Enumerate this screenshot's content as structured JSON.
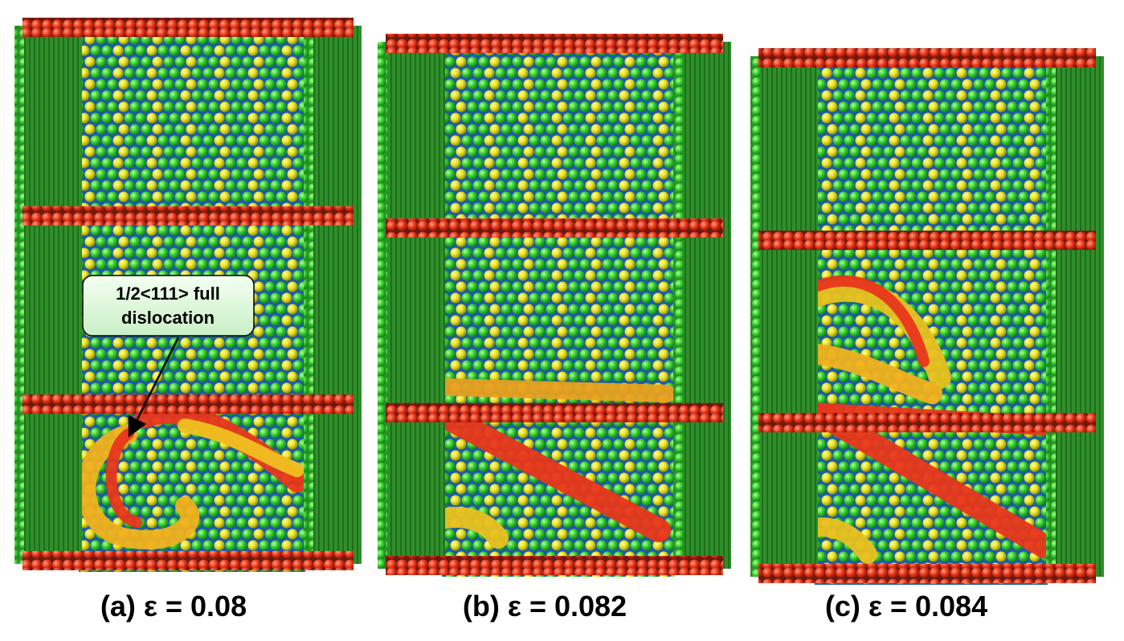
{
  "annotation": {
    "lines": [
      "1/2<111> full",
      "dislocation"
    ]
  },
  "panels": [
    {
      "caption": "(a) ε = 0.08"
    },
    {
      "caption": "(b) ε = 0.082"
    },
    {
      "caption": "(c) ε = 0.084"
    }
  ]
}
